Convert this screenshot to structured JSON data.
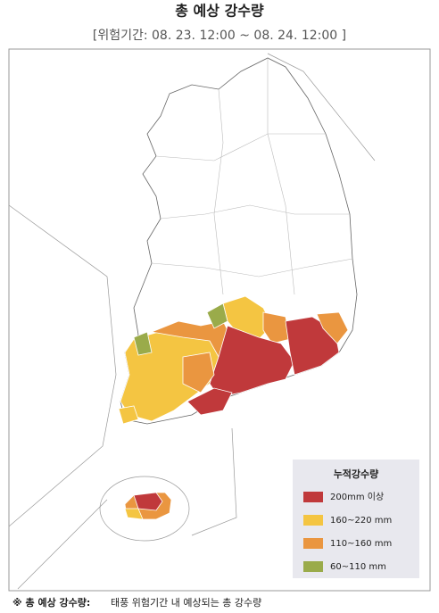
{
  "title": "총 예상 강수량",
  "subtitle": "[위험기간: 08. 23. 12:00 ~ 08. 24. 12:00 ]",
  "legend": {
    "title": "누적강수량",
    "items": [
      {
        "label": "200mm 이상",
        "color": "#c0393b"
      },
      {
        "label": "160~220 mm",
        "color": "#f4c542"
      },
      {
        "label": "110~160 mm",
        "color": "#ea9640"
      },
      {
        "label": "60~110 mm",
        "color": "#9aab4a"
      }
    ]
  },
  "footnote": {
    "prefix": "※ 총 예상 강수량:",
    "text": "태풍 위험기간 내 예상되는 총 강수량"
  }
}
